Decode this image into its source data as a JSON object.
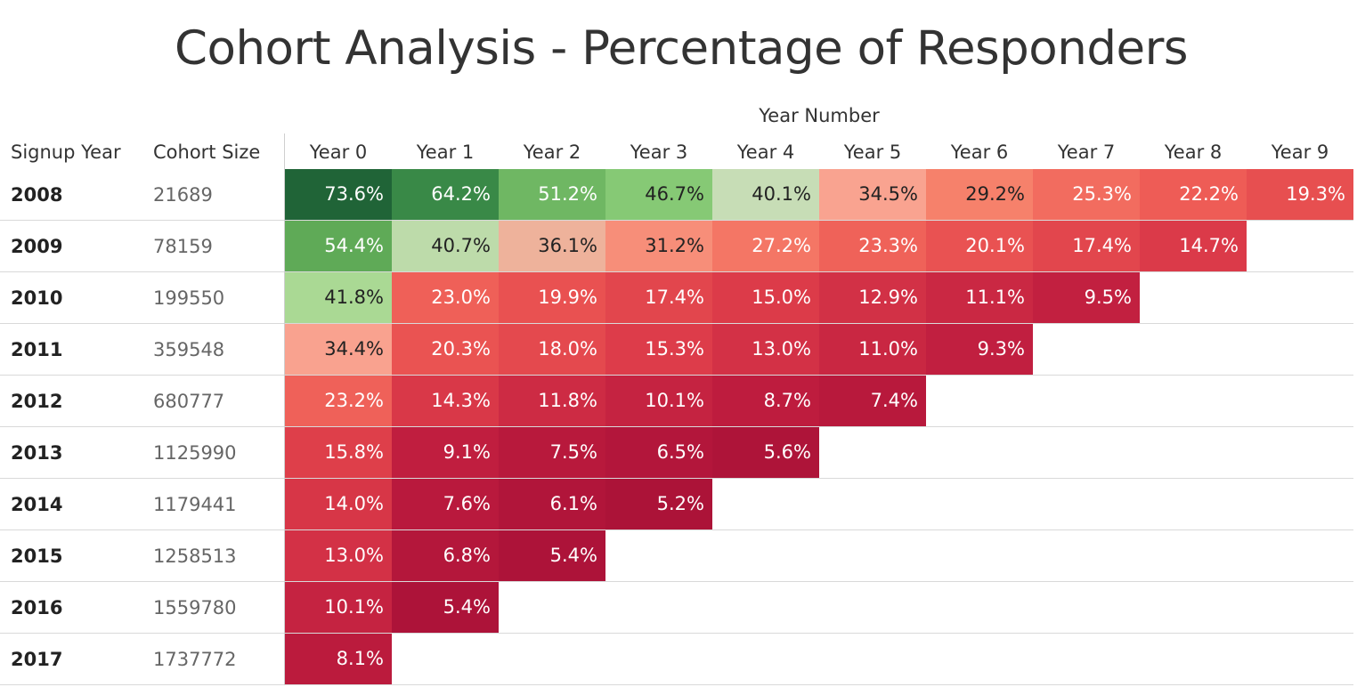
{
  "chart_data": {
    "type": "heatmap",
    "title": "Cohort Analysis - Percentage of Responders",
    "column_group_label": "Year Number",
    "row_header_labels": [
      "Signup Year",
      "Cohort Size"
    ],
    "columns": [
      "Year 0",
      "Year 1",
      "Year 2",
      "Year 3",
      "Year 4",
      "Year 5",
      "Year 6",
      "Year 7",
      "Year 8",
      "Year 9"
    ],
    "rows": [
      {
        "signup_year": "2008",
        "cohort_size": "21689",
        "values": [
          73.6,
          64.2,
          51.2,
          46.7,
          40.1,
          34.5,
          29.2,
          25.3,
          22.2,
          19.3
        ]
      },
      {
        "signup_year": "2009",
        "cohort_size": "78159",
        "values": [
          54.4,
          40.7,
          36.1,
          31.2,
          27.2,
          23.3,
          20.1,
          17.4,
          14.7
        ]
      },
      {
        "signup_year": "2010",
        "cohort_size": "199550",
        "values": [
          41.8,
          23.0,
          19.9,
          17.4,
          15.0,
          12.9,
          11.1,
          9.5
        ]
      },
      {
        "signup_year": "2011",
        "cohort_size": "359548",
        "values": [
          34.4,
          20.3,
          18.0,
          15.3,
          13.0,
          11.0,
          9.3
        ]
      },
      {
        "signup_year": "2012",
        "cohort_size": "680777",
        "values": [
          23.2,
          14.3,
          11.8,
          10.1,
          8.7,
          7.4
        ]
      },
      {
        "signup_year": "2013",
        "cohort_size": "1125990",
        "values": [
          15.8,
          9.1,
          7.5,
          6.5,
          5.6
        ]
      },
      {
        "signup_year": "2014",
        "cohort_size": "1179441",
        "values": [
          14.0,
          7.6,
          6.1,
          5.2
        ]
      },
      {
        "signup_year": "2015",
        "cohort_size": "1258513",
        "values": [
          13.0,
          6.8,
          5.4
        ]
      },
      {
        "signup_year": "2016",
        "cohort_size": "1559780",
        "values": [
          10.1,
          5.4
        ]
      },
      {
        "signup_year": "2017",
        "cohort_size": "1737772",
        "values": [
          8.1
        ]
      }
    ],
    "value_format": "%",
    "color_scale": {
      "low": "#b0123a",
      "mid": "#f7a08c",
      "midHigh": "#c3d9b1",
      "high": "#1f6b3a"
    }
  }
}
